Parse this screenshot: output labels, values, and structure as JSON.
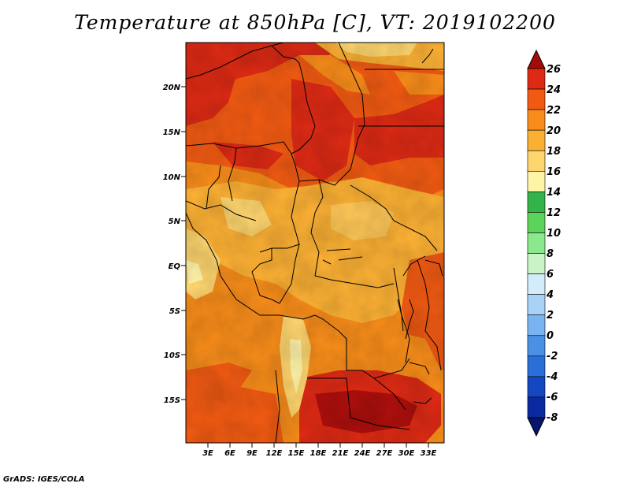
{
  "title": "Temperature at 850hPa [C], VT: 2019102200",
  "credit": "GrADS: IGES/COLA",
  "axes": {
    "x_ticks": [
      "3E",
      "6E",
      "9E",
      "12E",
      "15E",
      "18E",
      "21E",
      "24E",
      "27E",
      "30E",
      "33E"
    ],
    "y_ticks": [
      "20N",
      "15N",
      "10N",
      "5N",
      "EQ",
      "5S",
      "10S",
      "15S"
    ]
  },
  "colorbar": {
    "labels": [
      "26",
      "24",
      "22",
      "20",
      "18",
      "16",
      "14",
      "12",
      "10",
      "8",
      "6",
      "4",
      "2",
      "0",
      "-2",
      "-4",
      "-6",
      "-8"
    ],
    "colors": [
      "#a50a0a",
      "#dc2a14",
      "#f05a12",
      "#f78c1a",
      "#fbb034",
      "#fdd46e",
      "#fff3a8",
      "#34b34a",
      "#5cd35a",
      "#8ce88c",
      "#c8f4c8",
      "#d2ecfa",
      "#a8d2f8",
      "#7ab4f0",
      "#4a90e4",
      "#2a6ed8",
      "#1448c0",
      "#0a2aa0",
      "#06166e"
    ]
  }
}
